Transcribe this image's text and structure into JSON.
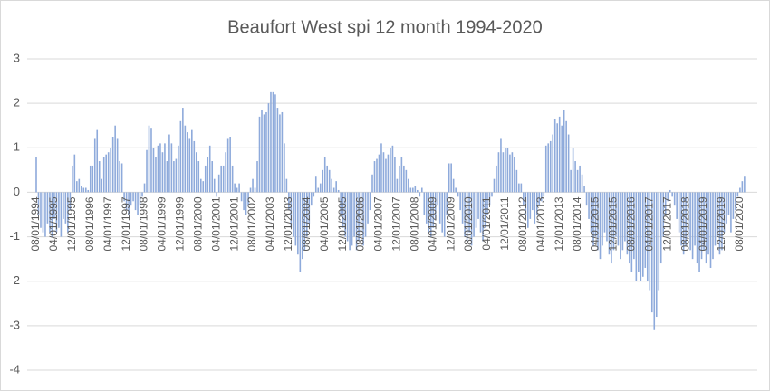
{
  "chart_data": {
    "type": "bar",
    "title": "Beaufort West spi 12 month 1994-2020",
    "color": "#8eaadb",
    "grid": true,
    "ylim": [
      -4,
      3
    ],
    "yticks": [
      -4,
      -3,
      -2,
      -1,
      0,
      1,
      2,
      3
    ],
    "categories": [
      "08/01/1994",
      null,
      null,
      null,
      null,
      null,
      null,
      null,
      "04/01/1995",
      null,
      null,
      null,
      null,
      null,
      null,
      null,
      "12/01/1995",
      null,
      null,
      null,
      null,
      null,
      null,
      null,
      "08/01/1996",
      null,
      null,
      null,
      null,
      null,
      null,
      null,
      "04/01/1997",
      null,
      null,
      null,
      null,
      null,
      null,
      null,
      "12/01/1997",
      null,
      null,
      null,
      null,
      null,
      null,
      null,
      "08/01/1998",
      null,
      null,
      null,
      null,
      null,
      null,
      null,
      "04/01/1999",
      null,
      null,
      null,
      null,
      null,
      null,
      null,
      "12/01/1999",
      null,
      null,
      null,
      null,
      null,
      null,
      null,
      "08/01/2000",
      null,
      null,
      null,
      null,
      null,
      null,
      null,
      "04/01/2001",
      null,
      null,
      null,
      null,
      null,
      null,
      null,
      "12/01/2001",
      null,
      null,
      null,
      null,
      null,
      null,
      null,
      "08/01/2002",
      null,
      null,
      null,
      null,
      null,
      null,
      null,
      "04/01/2003",
      null,
      null,
      null,
      null,
      null,
      null,
      null,
      "12/01/2003",
      null,
      null,
      null,
      null,
      null,
      null,
      null,
      "08/01/2004",
      null,
      null,
      null,
      null,
      null,
      null,
      null,
      "04/01/2005",
      null,
      null,
      null,
      null,
      null,
      null,
      null,
      "12/01/2005",
      null,
      null,
      null,
      null,
      null,
      null,
      null,
      "08/01/2006",
      null,
      null,
      null,
      null,
      null,
      null,
      null,
      "04/01/2007",
      null,
      null,
      null,
      null,
      null,
      null,
      null,
      "12/01/2007",
      null,
      null,
      null,
      null,
      null,
      null,
      null,
      "08/01/2008",
      null,
      null,
      null,
      null,
      null,
      null,
      null,
      "04/01/2009",
      null,
      null,
      null,
      null,
      null,
      null,
      null,
      "12/01/2009",
      null,
      null,
      null,
      null,
      null,
      null,
      null,
      "08/01/2010",
      null,
      null,
      null,
      null,
      null,
      null,
      null,
      "04/01/2011",
      null,
      null,
      null,
      null,
      null,
      null,
      null,
      "12/01/2011",
      null,
      null,
      null,
      null,
      null,
      null,
      null,
      "08/01/2012",
      null,
      null,
      null,
      null,
      null,
      null,
      null,
      "04/01/2013",
      null,
      null,
      null,
      null,
      null,
      null,
      null,
      "12/01/2013",
      null,
      null,
      null,
      null,
      null,
      null,
      null,
      "08/01/2014",
      null,
      null,
      null,
      null,
      null,
      null,
      null,
      "04/01/2015",
      null,
      null,
      null,
      null,
      null,
      null,
      null,
      "12/01/2015",
      null,
      null,
      null,
      null,
      null,
      null,
      null,
      "08/01/2016",
      null,
      null,
      null,
      null,
      null,
      null,
      null,
      "04/01/2017",
      null,
      null,
      null,
      null,
      null,
      null,
      null,
      "12/01/2017",
      null,
      null,
      null,
      null,
      null,
      null,
      null,
      "08/01/2018",
      null,
      null,
      null,
      null,
      null,
      null,
      null,
      "04/01/2019",
      null,
      null,
      null,
      null,
      null,
      null,
      null,
      "12/01/2019",
      null,
      null,
      null,
      null,
      null,
      null,
      null,
      "08/01/2020",
      null,
      null
    ],
    "values": [
      0.8,
      -0.5,
      -0.8,
      -0.9,
      -1.0,
      -0.7,
      -0.9,
      -1.0,
      -0.6,
      -0.9,
      -0.8,
      -1.0,
      -0.6,
      -0.7,
      -0.9,
      -0.4,
      0.6,
      0.85,
      0.25,
      0.3,
      0.15,
      0.1,
      0.1,
      0.05,
      0.6,
      0.6,
      1.2,
      1.4,
      0.7,
      0.3,
      0.8,
      0.85,
      0.9,
      1.0,
      1.25,
      1.5,
      1.2,
      0.7,
      0.65,
      -0.2,
      -0.4,
      -0.5,
      -0.3,
      -0.2,
      -0.4,
      -0.5,
      -0.3,
      -0.1,
      0.2,
      0.95,
      1.5,
      1.45,
      1.0,
      0.8,
      1.05,
      1.1,
      0.9,
      1.1,
      0.7,
      1.3,
      1.1,
      0.7,
      0.75,
      1.05,
      1.6,
      1.9,
      1.5,
      1.35,
      1.2,
      1.4,
      1.15,
      0.9,
      0.7,
      0.3,
      0.25,
      0.6,
      0.8,
      1.05,
      0.7,
      0.3,
      -0.1,
      0.4,
      0.6,
      0.6,
      0.9,
      1.2,
      1.25,
      0.6,
      0.2,
      0.1,
      0.2,
      -0.2,
      -0.4,
      -0.5,
      -0.3,
      0.1,
      0.3,
      0.1,
      0.7,
      1.7,
      1.85,
      1.75,
      1.8,
      2.0,
      2.25,
      2.25,
      2.2,
      1.9,
      1.75,
      1.8,
      1.1,
      0.3,
      -0.4,
      -0.8,
      -1.0,
      -1.2,
      -1.4,
      -1.8,
      -1.5,
      -1.3,
      -1.0,
      -0.7,
      -0.3,
      -0.1,
      0.35,
      0.1,
      0.2,
      0.5,
      0.8,
      0.6,
      0.5,
      0.3,
      0.1,
      0.25,
      0.05,
      -0.5,
      -0.8,
      -1.0,
      -1.1,
      -1.3,
      -1.2,
      -1.0,
      -1.3,
      -1.1,
      -0.9,
      -1.2,
      -1.0,
      -0.7,
      -0.4,
      0.4,
      0.7,
      0.75,
      0.85,
      1.1,
      0.9,
      0.75,
      0.85,
      1.0,
      1.05,
      0.8,
      0.3,
      0.6,
      0.8,
      0.6,
      0.5,
      0.3,
      0.1,
      0.1,
      0.15,
      0.05,
      -0.1,
      0.1,
      -0.5,
      -0.7,
      -0.9,
      -1.0,
      -0.8,
      -0.6,
      -0.3,
      -0.7,
      -0.9,
      -1.0,
      -0.5,
      0.65,
      0.65,
      0.3,
      0.1,
      -0.1,
      -0.4,
      -0.7,
      -1.0,
      -1.1,
      -0.9,
      -1.2,
      -1.0,
      -0.8,
      -0.6,
      -0.9,
      -1.1,
      -0.8,
      -0.5,
      -0.3,
      -0.1,
      0.3,
      0.6,
      0.9,
      1.2,
      0.9,
      1.0,
      1.0,
      0.85,
      0.9,
      0.8,
      0.5,
      0.2,
      0.2,
      -0.3,
      -0.5,
      -0.8,
      -0.6,
      -0.4,
      -0.7,
      -0.5,
      -0.3,
      -0.2,
      -0.1,
      1.05,
      1.1,
      1.15,
      1.3,
      1.65,
      1.55,
      1.7,
      1.5,
      1.85,
      1.6,
      1.3,
      0.5,
      1.0,
      0.7,
      0.5,
      0.6,
      0.4,
      0.15,
      -0.3,
      -0.6,
      -0.9,
      -1.2,
      -1.0,
      -1.3,
      -1.5,
      -1.2,
      -0.9,
      -1.1,
      -1.4,
      -1.6,
      -1.3,
      -1.0,
      -1.2,
      -1.5,
      -1.3,
      -1.1,
      -1.4,
      -1.6,
      -1.8,
      -1.5,
      -2.0,
      -1.8,
      -2.0,
      -1.9,
      -1.7,
      -2.0,
      -2.2,
      -2.7,
      -3.1,
      -2.8,
      -2.2,
      -1.6,
      -1.0,
      -0.5,
      -0.2,
      0.05,
      -0.1,
      -0.3,
      -0.6,
      -0.9,
      -1.2,
      -1.4,
      -1.2,
      -1.0,
      -1.3,
      -1.5,
      -1.2,
      -1.6,
      -1.8,
      -1.5,
      -1.3,
      -1.6,
      -1.4,
      -1.7,
      -1.5,
      -1.2,
      -1.0,
      -1.4,
      -1.3,
      -0.9,
      -0.7,
      -0.5,
      -0.9,
      -0.6,
      -0.4,
      -0.1,
      0.1,
      0.25,
      0.35
    ]
  }
}
